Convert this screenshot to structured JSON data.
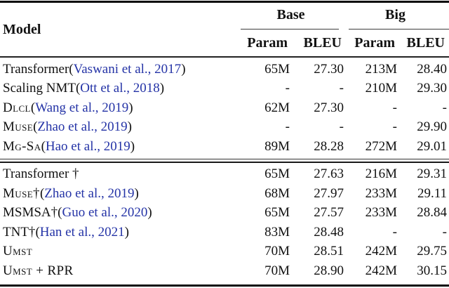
{
  "table": {
    "colors": {
      "citation": "#2433a6",
      "text": "#111111",
      "rule": "#0d0d0d"
    },
    "header": {
      "model_label": "Model",
      "groups": [
        {
          "label": "Base"
        },
        {
          "label": "Big"
        }
      ],
      "subheaders": [
        "Param",
        "BLEU",
        "Param",
        "BLEU"
      ]
    },
    "sections": [
      {
        "rows": [
          {
            "name": "Transformer",
            "sc": false,
            "cite": "Vaswani et al., 2017",
            "cells": [
              "65M",
              "27.30",
              "213M",
              "28.40"
            ]
          },
          {
            "name": "Scaling NMT",
            "sc": false,
            "cite": "Ott et al., 2018",
            "cells": [
              "-",
              "-",
              "210M",
              "29.30"
            ]
          },
          {
            "name": "Dlcl",
            "sc": true,
            "cite": "Wang et al., 2019",
            "cells": [
              "62M",
              "27.30",
              "-",
              "-"
            ]
          },
          {
            "name": "Muse",
            "sc": true,
            "cite": "Zhao et al., 2019",
            "cells": [
              "-",
              "-",
              "-",
              "29.90"
            ]
          },
          {
            "name": "Mg-Sa",
            "sc": true,
            "cite": "Hao et al., 2019",
            "cells": [
              "89M",
              "28.28",
              "272M",
              "29.01"
            ]
          }
        ]
      },
      {
        "rows": [
          {
            "name": "Transformer †",
            "sc": false,
            "cite": null,
            "cells": [
              "65M",
              "27.63",
              "216M",
              "29.31"
            ]
          },
          {
            "name": "Muse†",
            "sc": true,
            "cite": "Zhao et al., 2019",
            "cells": [
              "68M",
              "27.97",
              "233M",
              "29.11"
            ]
          },
          {
            "name": "MSMSA†",
            "sc": false,
            "cite": "Guo et al., 2020",
            "cells": [
              "65M",
              "27.57",
              "233M",
              "28.84"
            ]
          },
          {
            "name": "TNT†",
            "sc": false,
            "cite": "Han et al., 2021",
            "cells": [
              "83M",
              "28.48",
              "-",
              "-"
            ]
          },
          {
            "name": "Umst",
            "sc": true,
            "cite": null,
            "cells": [
              "70M",
              "28.51",
              "242M",
              "29.75"
            ]
          },
          {
            "name": "Umst + RPR",
            "sc": true,
            "cite": null,
            "cells": [
              "70M",
              "28.90",
              "242M",
              "30.15"
            ]
          }
        ]
      }
    ]
  }
}
